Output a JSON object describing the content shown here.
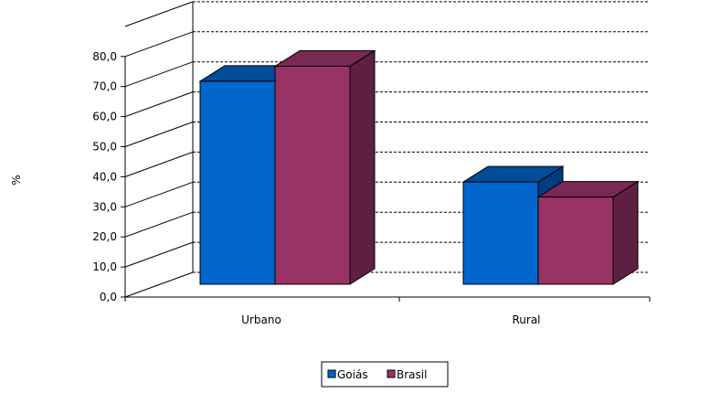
{
  "chart_data": {
    "type": "bar",
    "title": "",
    "xlabel": "",
    "ylabel": "%",
    "ylim": [
      0,
      80
    ],
    "yticks": [
      "0,0",
      "10,0",
      "20,0",
      "30,0",
      "40,0",
      "50,0",
      "60,0",
      "70,0",
      "80,0"
    ],
    "categories": [
      "Urbano",
      "Rural"
    ],
    "series": [
      {
        "name": "Goiás",
        "values": [
          67.5,
          34.0
        ]
      },
      {
        "name": "Brasil",
        "values": [
          72.5,
          29.0
        ]
      }
    ],
    "grid": true,
    "legend_position": "bottom",
    "colors": {
      "Goiás": {
        "front": "#0066CC",
        "top": "#004C99",
        "side": "#003D80"
      },
      "Brasil": {
        "front": "#993366",
        "top": "#7A2952",
        "side": "#5E2040"
      }
    }
  }
}
